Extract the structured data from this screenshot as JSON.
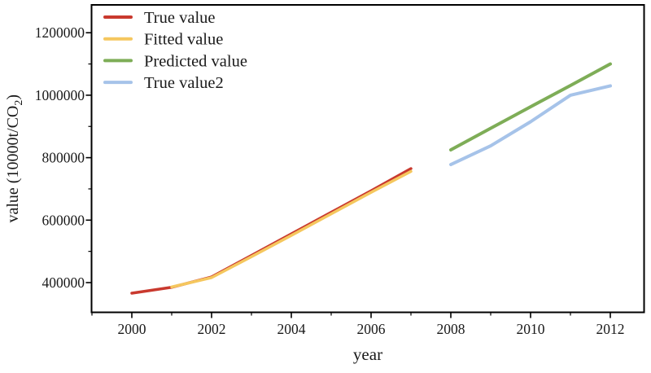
{
  "figure": {
    "background": "#ffffff",
    "frame_color": "#000000",
    "text_color": "#1a1a1a"
  },
  "chart_data": {
    "type": "line",
    "title": "",
    "xlabel": "year",
    "ylabel": "value (10000t/CO2)",
    "ylabel_parts": {
      "main": "value (10000t/CO",
      "sub": "2",
      "close": ")"
    },
    "xlim": [
      1999.0,
      2012.9
    ],
    "ylim": [
      306000,
      1290000
    ],
    "x_major_ticks": [
      2000,
      2002,
      2004,
      2006,
      2008,
      2010,
      2012
    ],
    "x_minor_ticks": [
      1999,
      2001,
      2003,
      2005,
      2007,
      2009,
      2011
    ],
    "y_major_ticks": [
      400000,
      600000,
      800000,
      1000000,
      1200000
    ],
    "y_minor_ticks": [
      500000,
      700000,
      900000,
      1100000
    ],
    "grid": false,
    "legend_position": "upper-left",
    "series": [
      {
        "name": "True value",
        "color": "#c9392e",
        "width": 3.5,
        "x": [
          2000,
          2001,
          2002,
          2003,
          2004,
          2005,
          2006,
          2007
        ],
        "values": [
          366000,
          385000,
          418000,
          487000,
          556000,
          625000,
          694000,
          765000
        ]
      },
      {
        "name": "Fitted value",
        "color": "#f5c75e",
        "width": 3.5,
        "x": [
          2001,
          2002,
          2003,
          2004,
          2005,
          2006,
          2007
        ],
        "values": [
          386000,
          416000,
          483000,
          551000,
          620000,
          689000,
          756000
        ]
      },
      {
        "name": "Predicted value",
        "color": "#7ead57",
        "width": 4,
        "x": [
          2008,
          2009,
          2010,
          2011,
          2012
        ],
        "values": [
          825000,
          894000,
          963000,
          1031000,
          1100000
        ]
      },
      {
        "name": "True value2",
        "color": "#a6c3e9",
        "width": 4,
        "x": [
          2008,
          2009,
          2010,
          2011,
          2012
        ],
        "values": [
          778000,
          838000,
          915000,
          1000000,
          1030000
        ]
      }
    ]
  }
}
